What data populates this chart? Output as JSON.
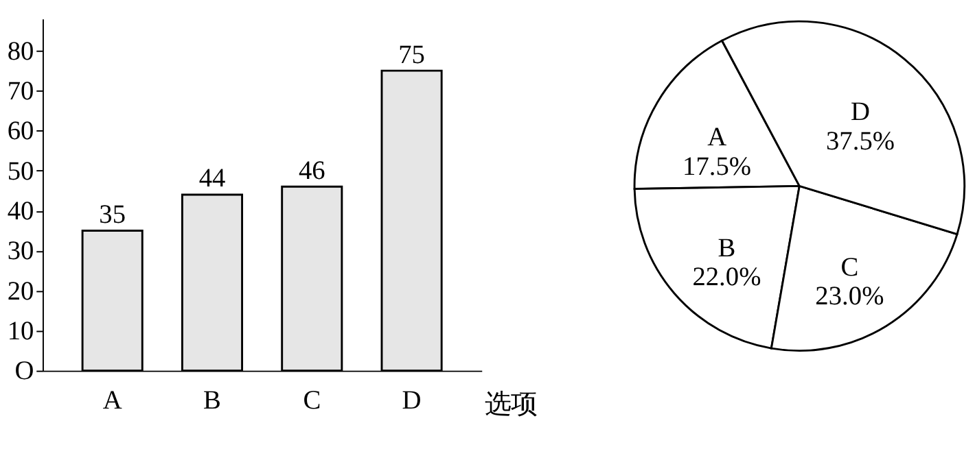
{
  "chart_data": [
    {
      "type": "bar",
      "categories": [
        "A",
        "B",
        "C",
        "D"
      ],
      "values": [
        35,
        44,
        46,
        75
      ],
      "color": "#e6e6e6",
      "data_labels": true,
      "xlabel": "选项",
      "ylim": [
        0,
        88
      ],
      "yticks": [
        {
          "value": 0,
          "label": "O"
        },
        10,
        20,
        30,
        40,
        50,
        60,
        70,
        80
      ],
      "grid": false
    },
    {
      "type": "pie",
      "categories": [
        "A",
        "B",
        "C",
        "D"
      ],
      "values": [
        17.5,
        22.0,
        23.0,
        37.5
      ],
      "value_labels": [
        "17.5%",
        "22.0%",
        "23.0%",
        "37.5%"
      ],
      "colors": [
        "#ffffff",
        "#ffffff",
        "#ffffff",
        "#ffffff"
      ]
    }
  ]
}
